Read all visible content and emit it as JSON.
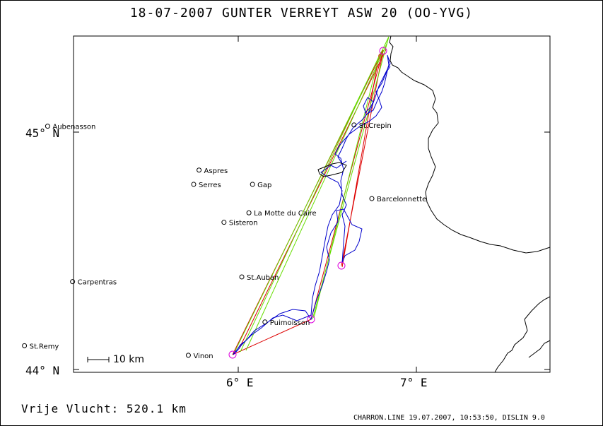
{
  "header": {
    "title": "18-07-2007   GUNTER VERREYT   ASW 20 (OO-YVG)"
  },
  "flight": {
    "distance_label": "Vrije Vlucht:  520.1 km"
  },
  "footer": {
    "credit": "CHARRON.LINE 19.07.2007, 10:53:50, DISLIN 9.0"
  },
  "axes": {
    "lat_ticks": [
      "45° N",
      "44° N"
    ],
    "lon_ticks": [
      "6° E",
      "7° E"
    ]
  },
  "scale_bar": {
    "label": "10 km"
  },
  "places": [
    {
      "name": "Aubenasson",
      "lon": 4.93,
      "lat": 45.025
    },
    {
      "name": "Aspres",
      "lon": 5.78,
      "lat": 44.84
    },
    {
      "name": "Serres",
      "lon": 5.75,
      "lat": 44.78
    },
    {
      "name": "Gap",
      "lon": 6.08,
      "lat": 44.78
    },
    {
      "name": "La Motte du Caire",
      "lon": 6.06,
      "lat": 44.66
    },
    {
      "name": "Sisteron",
      "lon": 5.92,
      "lat": 44.62
    },
    {
      "name": "St.Auban",
      "lon": 6.02,
      "lat": 44.39
    },
    {
      "name": "Carpentras",
      "lon": 5.07,
      "lat": 44.37
    },
    {
      "name": "Puimoisson",
      "lon": 6.15,
      "lat": 44.2
    },
    {
      "name": "St.Crepin",
      "lon": 6.65,
      "lat": 45.03
    },
    {
      "name": "Barcelonnette",
      "lon": 6.75,
      "lat": 44.72
    },
    {
      "name": "St.Remy",
      "lon": 4.8,
      "lat": 44.1
    },
    {
      "name": "Vinon",
      "lon": 5.72,
      "lat": 44.06
    }
  ],
  "colors": {
    "track": "#0000cc",
    "task_red": "#dd0000",
    "task_green": "#66dd00",
    "turnpoint": "#dd00dd",
    "border": "#000000"
  }
}
